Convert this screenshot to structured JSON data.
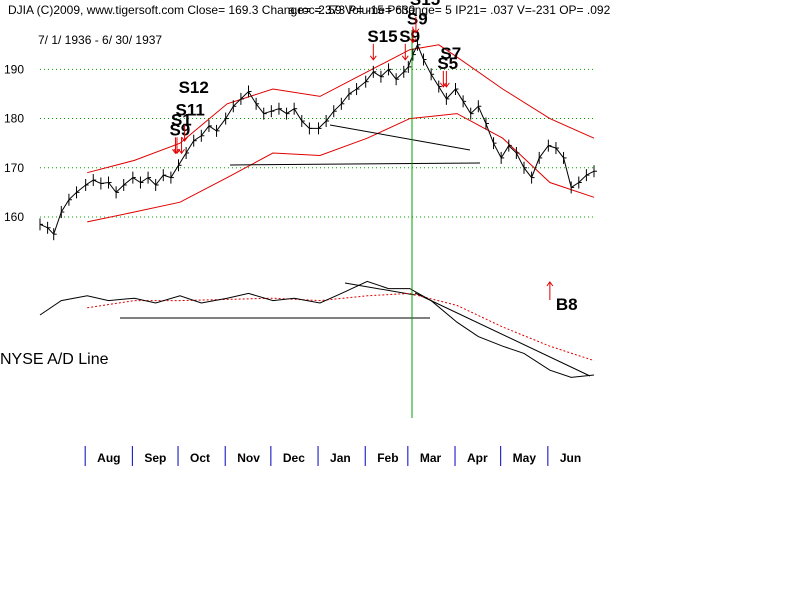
{
  "header": {
    "left": "DJIA     (C)2009, www.tigersoft.com     Close=   169.3   Change= -2.59  Volume=  630",
    "right": "a.roc=.373 P= -15 Pchange=  5 IP21= .037 V=-231 OP= .092",
    "dates": "7/ 1/ 1936 - 6/ 30/ 1937"
  },
  "panel_label": "NYSE A/D Line",
  "colors": {
    "price": "#000000",
    "bands": "#e00000",
    "grid": "#00a000",
    "marker": "#00a000",
    "signal": "#e00000",
    "month_tick": "#0000c0",
    "ma": "#e00000"
  },
  "chart_data": {
    "type": "line",
    "title": "DJIA",
    "period": [
      "1936-07-01",
      "1937-06-30"
    ],
    "y_ticks": [
      160,
      170,
      180,
      190
    ],
    "ylim": [
      148,
      198
    ],
    "x_labels": [
      "Aug",
      "Sep",
      "Oct",
      "Nov",
      "Dec",
      "Jan",
      "Feb",
      "Mar",
      "Apr",
      "May",
      "Jun"
    ],
    "series": [
      {
        "role": "price",
        "points": [
          [
            "1936-07-01",
            158.5
          ],
          [
            "1936-07-06",
            157.8
          ],
          [
            "1936-07-10",
            156.5
          ],
          [
            "1936-07-15",
            161.0
          ],
          [
            "1936-07-20",
            163.5
          ],
          [
            "1936-07-25",
            165.0
          ],
          [
            "1936-07-31",
            166.5
          ],
          [
            "1936-08-05",
            167.5
          ],
          [
            "1936-08-10",
            166.8
          ],
          [
            "1936-08-15",
            167.0
          ],
          [
            "1936-08-20",
            165.0
          ],
          [
            "1936-08-25",
            166.5
          ],
          [
            "1936-08-31",
            168.0
          ],
          [
            "1936-09-05",
            167.0
          ],
          [
            "1936-09-10",
            168.0
          ],
          [
            "1936-09-15",
            166.5
          ],
          [
            "1936-09-20",
            168.5
          ],
          [
            "1936-09-25",
            168.0
          ],
          [
            "1936-09-30",
            170.5
          ],
          [
            "1936-10-05",
            173.0
          ],
          [
            "1936-10-10",
            175.5
          ],
          [
            "1936-10-15",
            176.5
          ],
          [
            "1936-10-20",
            178.5
          ],
          [
            "1936-10-25",
            177.5
          ],
          [
            "1936-10-31",
            180.0
          ],
          [
            "1936-11-05",
            182.5
          ],
          [
            "1936-11-10",
            184.0
          ],
          [
            "1936-11-15",
            185.5
          ],
          [
            "1936-11-20",
            183.0
          ],
          [
            "1936-11-25",
            181.0
          ],
          [
            "1936-11-30",
            181.5
          ],
          [
            "1936-12-05",
            182.0
          ],
          [
            "1936-12-10",
            181.0
          ],
          [
            "1936-12-15",
            182.0
          ],
          [
            "1936-12-20",
            179.5
          ],
          [
            "1936-12-25",
            178.0
          ],
          [
            "1936-12-31",
            178.0
          ],
          [
            "1937-01-05",
            179.5
          ],
          [
            "1937-01-10",
            181.5
          ],
          [
            "1937-01-15",
            183.0
          ],
          [
            "1937-01-20",
            185.0
          ],
          [
            "1937-01-25",
            186.0
          ],
          [
            "1937-01-31",
            187.5
          ],
          [
            "1937-02-05",
            189.5
          ],
          [
            "1937-02-10",
            188.5
          ],
          [
            "1937-02-15",
            190.0
          ],
          [
            "1937-02-20",
            188.0
          ],
          [
            "1937-02-25",
            189.5
          ],
          [
            "1937-02-28",
            190.5
          ],
          [
            "1937-03-03",
            193.0
          ],
          [
            "1937-03-06",
            195.0
          ],
          [
            "1937-03-10",
            192.0
          ],
          [
            "1937-03-15",
            189.0
          ],
          [
            "1937-03-20",
            186.5
          ],
          [
            "1937-03-25",
            184.0
          ],
          [
            "1937-03-31",
            186.0
          ],
          [
            "1937-04-05",
            183.5
          ],
          [
            "1937-04-10",
            181.0
          ],
          [
            "1937-04-15",
            182.5
          ],
          [
            "1937-04-20",
            179.0
          ],
          [
            "1937-04-25",
            175.0
          ],
          [
            "1937-04-30",
            172.0
          ],
          [
            "1937-05-05",
            174.5
          ],
          [
            "1937-05-10",
            173.0
          ],
          [
            "1937-05-15",
            170.0
          ],
          [
            "1937-05-20",
            168.0
          ],
          [
            "1937-05-25",
            172.0
          ],
          [
            "1937-05-31",
            174.5
          ],
          [
            "1937-06-05",
            174.0
          ],
          [
            "1937-06-10",
            172.0
          ],
          [
            "1937-06-15",
            166.0
          ],
          [
            "1937-06-20",
            167.0
          ],
          [
            "1937-06-25",
            168.5
          ],
          [
            "1937-06-30",
            169.3
          ]
        ]
      },
      {
        "role": "upper_band",
        "points": [
          [
            "1936-08-01",
            169.0
          ],
          [
            "1936-09-01",
            171.5
          ],
          [
            "1936-10-01",
            175.0
          ],
          [
            "1936-11-01",
            183.0
          ],
          [
            "1936-12-01",
            186.0
          ],
          [
            "1937-01-01",
            184.5
          ],
          [
            "1937-02-01",
            189.5
          ],
          [
            "1937-03-01",
            194.0
          ],
          [
            "1937-03-20",
            195.0
          ],
          [
            "1937-04-01",
            192.5
          ],
          [
            "1937-05-01",
            186.0
          ],
          [
            "1937-06-01",
            180.0
          ],
          [
            "1937-06-30",
            176.0
          ]
        ]
      },
      {
        "role": "lower_band",
        "points": [
          [
            "1936-08-01",
            159.0
          ],
          [
            "1936-09-01",
            161.0
          ],
          [
            "1936-10-01",
            163.0
          ],
          [
            "1936-11-01",
            168.0
          ],
          [
            "1936-12-01",
            173.0
          ],
          [
            "1937-01-01",
            172.5
          ],
          [
            "1937-02-01",
            176.0
          ],
          [
            "1937-03-01",
            180.0
          ],
          [
            "1937-04-01",
            181.0
          ],
          [
            "1937-05-01",
            176.0
          ],
          [
            "1937-06-01",
            167.0
          ],
          [
            "1937-06-30",
            164.0
          ]
        ]
      },
      {
        "role": "ad_line",
        "points": [
          [
            "1936-07-01",
            0.0
          ],
          [
            "1936-07-15",
            0.6
          ],
          [
            "1936-08-01",
            0.8
          ],
          [
            "1936-08-15",
            0.6
          ],
          [
            "1936-09-01",
            0.7
          ],
          [
            "1936-09-15",
            0.5
          ],
          [
            "1936-10-01",
            0.8
          ],
          [
            "1936-10-15",
            0.5
          ],
          [
            "1936-11-01",
            0.7
          ],
          [
            "1936-11-15",
            0.9
          ],
          [
            "1936-12-01",
            0.6
          ],
          [
            "1936-12-15",
            0.7
          ],
          [
            "1937-01-01",
            0.5
          ],
          [
            "1937-01-15",
            0.9
          ],
          [
            "1937-02-01",
            1.4
          ],
          [
            "1937-02-15",
            1.1
          ],
          [
            "1937-03-01",
            1.1
          ],
          [
            "1937-03-15",
            0.6
          ],
          [
            "1937-04-01",
            -0.3
          ],
          [
            "1937-04-15",
            -0.9
          ],
          [
            "1937-05-01",
            -1.3
          ],
          [
            "1937-05-15",
            -1.6
          ],
          [
            "1937-06-01",
            -2.3
          ],
          [
            "1937-06-15",
            -2.6
          ],
          [
            "1937-06-30",
            -2.5
          ]
        ]
      },
      {
        "role": "ad_moving_average",
        "points": [
          [
            "1936-08-01",
            0.3
          ],
          [
            "1936-09-01",
            0.6
          ],
          [
            "1936-10-01",
            0.6
          ],
          [
            "1936-11-01",
            0.65
          ],
          [
            "1936-12-01",
            0.7
          ],
          [
            "1937-01-01",
            0.6
          ],
          [
            "1937-02-01",
            0.8
          ],
          [
            "1937-03-01",
            0.9
          ],
          [
            "1937-04-01",
            0.4
          ],
          [
            "1937-05-01",
            -0.5
          ],
          [
            "1937-06-01",
            -1.3
          ],
          [
            "1937-06-30",
            -1.9
          ]
        ]
      }
    ],
    "signals": [
      {
        "label": "S9",
        "date": "1936-09-28",
        "side": "sell"
      },
      {
        "label": "S1",
        "date": "1936-09-29",
        "side": "sell"
      },
      {
        "label": "S11",
        "date": "1936-10-02",
        "side": "sell"
      },
      {
        "label": "S12",
        "date": "1936-10-04",
        "side": "sell"
      },
      {
        "label": "S15",
        "date": "1937-02-05",
        "side": "sell"
      },
      {
        "label": "S9",
        "date": "1937-02-26",
        "side": "sell"
      },
      {
        "label": "S9",
        "date": "1937-03-03",
        "side": "sell"
      },
      {
        "label": "S15",
        "date": "1937-03-05",
        "side": "sell"
      },
      {
        "label": "S5",
        "date": "1937-03-23",
        "side": "sell"
      },
      {
        "label": "S7",
        "date": "1937-03-25",
        "side": "sell"
      },
      {
        "label": "B8",
        "date": "1937-06-01",
        "side": "buy"
      }
    ]
  }
}
